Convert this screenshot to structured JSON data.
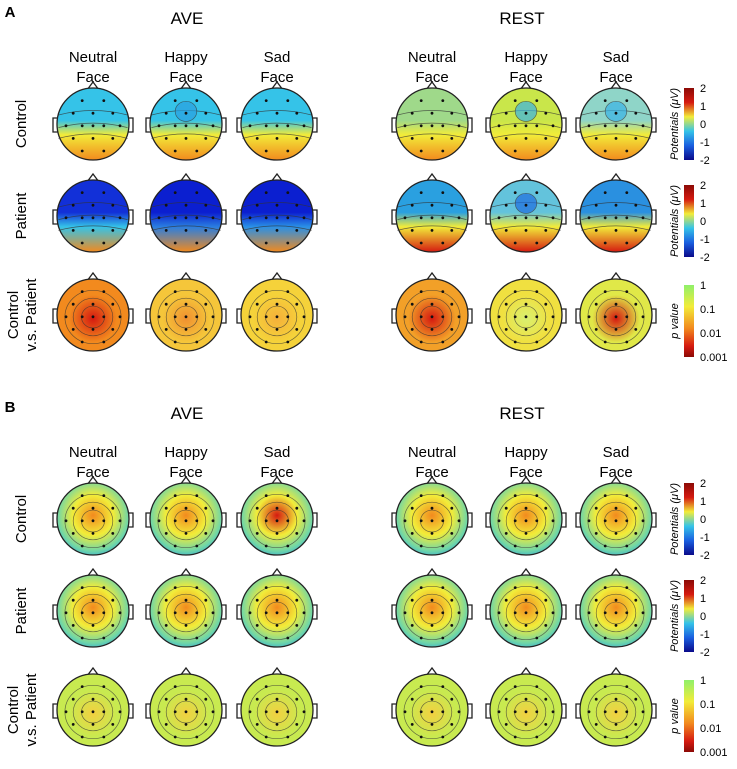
{
  "panels": [
    {
      "letter": "A",
      "groups": [
        "AVE",
        "REST"
      ],
      "columns": [
        [
          "Neutral",
          "Face"
        ],
        [
          "Happy",
          "Face"
        ],
        [
          "Sad",
          "Face"
        ]
      ],
      "rows": [
        [
          "Control"
        ],
        [
          "Patient"
        ],
        [
          "Control",
          "v.s. Patient"
        ]
      ],
      "maps": [
        [
          "ctrlA_ave_n",
          "ctrlA_ave_h",
          "ctrlA_ave_s",
          "ctrlA_rest_n",
          "ctrlA_rest_h",
          "ctrlA_rest_s"
        ],
        [
          "patA_ave_n",
          "patA_ave_h",
          "patA_ave_s",
          "patA_rest_n",
          "patA_rest_h",
          "patA_rest_s"
        ],
        [
          "pA_ave_n",
          "pA_ave_h",
          "pA_ave_s",
          "pA_rest_n",
          "pA_rest_h",
          "pA_rest_s"
        ]
      ]
    },
    {
      "letter": "B",
      "groups": [
        "AVE",
        "REST"
      ],
      "columns": [
        [
          "Neutral",
          "Face"
        ],
        [
          "Happy",
          "Face"
        ],
        [
          "Sad",
          "Face"
        ]
      ],
      "rows": [
        [
          "Control"
        ],
        [
          "Patient"
        ],
        [
          "Control",
          "v.s. Patient"
        ]
      ],
      "maps": [
        [
          "ctrlB_ave_n",
          "ctrlB_ave_h",
          "ctrlB_ave_s",
          "ctrlB_rest_n",
          "ctrlB_rest_h",
          "ctrlB_rest_s"
        ],
        [
          "patB_ave_n",
          "patB_ave_h",
          "patB_ave_s",
          "patB_rest_n",
          "patB_rest_h",
          "patB_rest_s"
        ],
        [
          "pB_ave_n",
          "pB_ave_h",
          "pB_ave_s",
          "pB_rest_n",
          "pB_rest_h",
          "pB_rest_s"
        ]
      ]
    }
  ],
  "colorbars": {
    "potential": {
      "label": "Potentials (μV)",
      "ticks": [
        "2",
        "1",
        "0",
        "-1",
        "-2"
      ]
    },
    "pvalue": {
      "label": "p value",
      "ticks": [
        "1",
        "0.1",
        "0.01",
        "0.001"
      ]
    }
  },
  "palette": {
    "blue": "#0b1fd0",
    "cyan": "#35c3e8",
    "yellow": "#f2ec39",
    "orange": "#f28a1e",
    "red": "#d51a10",
    "green": "#8ff06a",
    "darkred": "#8b0a06"
  }
}
